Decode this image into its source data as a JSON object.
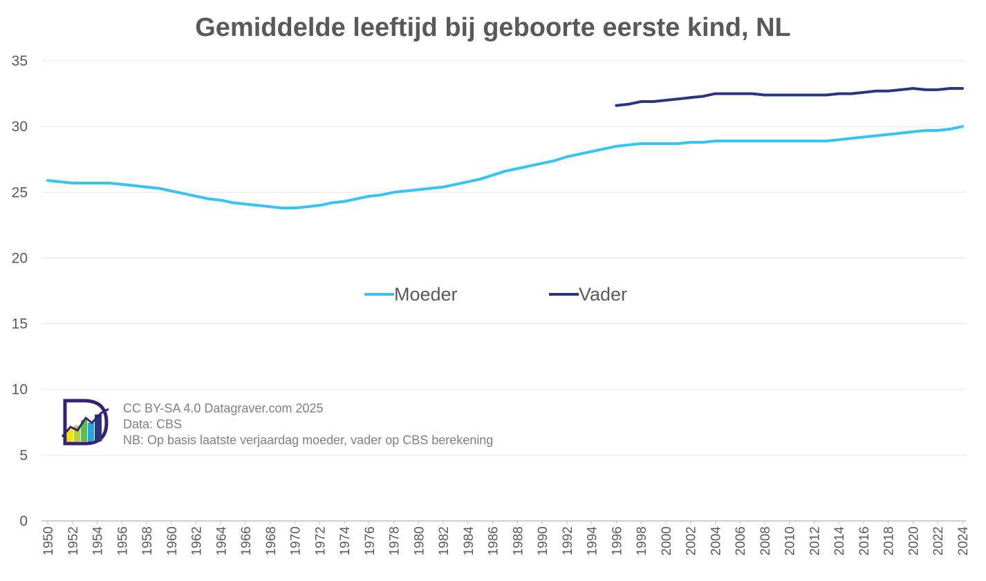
{
  "chart_data": {
    "type": "line",
    "title": "Gemiddelde leeftijd bij geboorte eerste kind, NL",
    "xlabel": "",
    "ylabel": "",
    "ylim": [
      0,
      35
    ],
    "yticks": [
      "0",
      "5",
      "10",
      "15",
      "20",
      "25",
      "30",
      "35"
    ],
    "grid": true,
    "legend_position": "center",
    "x": [
      1950,
      1951,
      1952,
      1953,
      1954,
      1955,
      1956,
      1957,
      1958,
      1959,
      1960,
      1961,
      1962,
      1963,
      1964,
      1965,
      1966,
      1967,
      1968,
      1969,
      1970,
      1971,
      1972,
      1973,
      1974,
      1975,
      1976,
      1977,
      1978,
      1979,
      1980,
      1981,
      1982,
      1983,
      1984,
      1985,
      1986,
      1987,
      1988,
      1989,
      1990,
      1991,
      1992,
      1993,
      1994,
      1995,
      1996,
      1997,
      1998,
      1999,
      2000,
      2001,
      2002,
      2003,
      2004,
      2005,
      2006,
      2007,
      2008,
      2009,
      2010,
      2011,
      2012,
      2013,
      2014,
      2015,
      2016,
      2017,
      2018,
      2019,
      2020,
      2021,
      2022,
      2023,
      2024
    ],
    "xtick_labels": [
      "1950",
      "1952",
      "1954",
      "1956",
      "1958",
      "1960",
      "1962",
      "1964",
      "1966",
      "1968",
      "1970",
      "1972",
      "1974",
      "1976",
      "1978",
      "1980",
      "1982",
      "1984",
      "1986",
      "1988",
      "1990",
      "1992",
      "1994",
      "1996",
      "1998",
      "2000",
      "2002",
      "2004",
      "2006",
      "2008",
      "2010",
      "2012",
      "2014",
      "2016",
      "2018",
      "2020",
      "2022",
      "2024"
    ],
    "series": [
      {
        "name": "Moeder",
        "color": "#33c3f5",
        "values": [
          25.9,
          25.8,
          25.7,
          25.7,
          25.7,
          25.7,
          25.6,
          25.5,
          25.4,
          25.3,
          25.1,
          24.9,
          24.7,
          24.5,
          24.4,
          24.2,
          24.1,
          24.0,
          23.9,
          23.8,
          23.8,
          23.9,
          24.0,
          24.2,
          24.3,
          24.5,
          24.7,
          24.8,
          25.0,
          25.1,
          25.2,
          25.3,
          25.4,
          25.6,
          25.8,
          26.0,
          26.3,
          26.6,
          26.8,
          27.0,
          27.2,
          27.4,
          27.7,
          27.9,
          28.1,
          28.3,
          28.5,
          28.6,
          28.7,
          28.7,
          28.7,
          28.7,
          28.8,
          28.8,
          28.9,
          28.9,
          28.9,
          28.9,
          28.9,
          28.9,
          28.9,
          28.9,
          28.9,
          28.9,
          29.0,
          29.1,
          29.2,
          29.3,
          29.4,
          29.5,
          29.6,
          29.7,
          29.7,
          29.8,
          30.0
        ]
      },
      {
        "name": "Vader",
        "color": "#283583",
        "values": [
          null,
          null,
          null,
          null,
          null,
          null,
          null,
          null,
          null,
          null,
          null,
          null,
          null,
          null,
          null,
          null,
          null,
          null,
          null,
          null,
          null,
          null,
          null,
          null,
          null,
          null,
          null,
          null,
          null,
          null,
          null,
          null,
          null,
          null,
          null,
          null,
          null,
          null,
          null,
          null,
          null,
          null,
          null,
          null,
          null,
          null,
          31.6,
          31.7,
          31.9,
          31.9,
          32.0,
          32.1,
          32.2,
          32.3,
          32.5,
          32.5,
          32.5,
          32.5,
          32.4,
          32.4,
          32.4,
          32.4,
          32.4,
          32.4,
          32.5,
          32.5,
          32.6,
          32.7,
          32.7,
          32.8,
          32.9,
          32.8,
          32.8,
          32.9,
          32.9
        ]
      }
    ],
    "annotations": [
      "CC BY-SA 4.0 Datagraver.com  2025",
      "Data: CBS",
      "NB: Op basis laatste verjaardag moeder, vader op CBS berekening"
    ]
  },
  "colors": {
    "grid": "#e6e6e6",
    "axis": "#bfbfbf",
    "logo_outline": "#3b1f70"
  },
  "logo": {
    "name": "datagraver-logo",
    "text": "D"
  }
}
